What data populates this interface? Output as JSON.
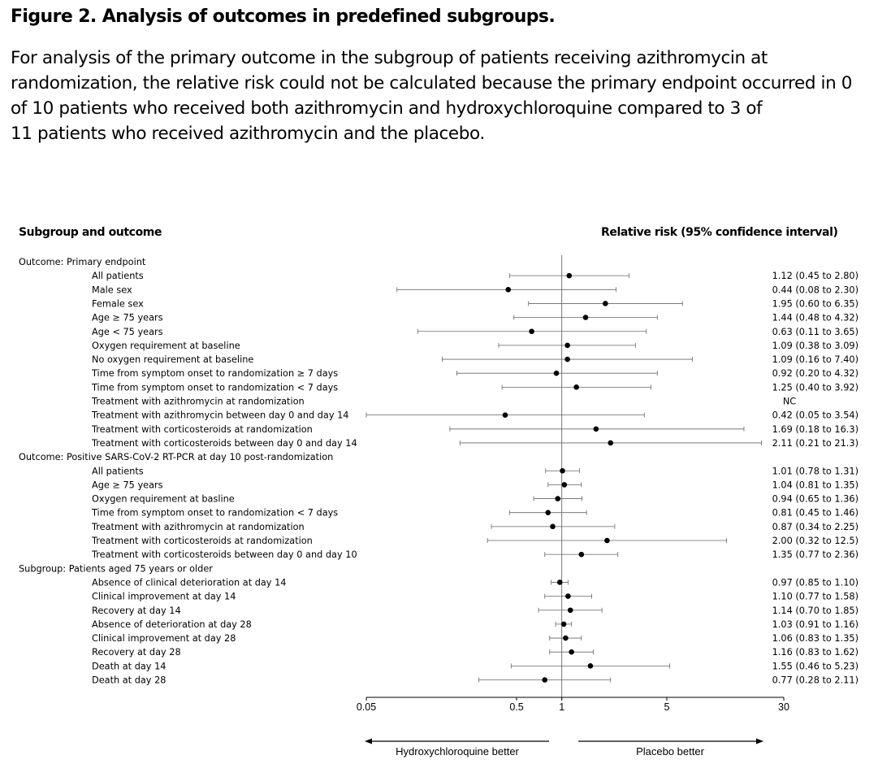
{
  "figure": {
    "title": "Figure 2. Analysis of outcomes in predefined subgroups.",
    "caption_lines": [
      "For analysis of the primary outcome in the subgroup of patients receiving azithromycin at",
      "randomization, the relative risk could not be calculated because the primary endpoint occurred in 0",
      "of 10 patients who received both azithromycin and hydroxychloroquine compared to 3 of",
      "11 patients who received azithromycin and the placebo."
    ]
  },
  "chart_data": {
    "type": "forest",
    "scale": "log",
    "column_headers": {
      "subgroup": "Subgroup and outcome",
      "estimate": "Relative risk (95% confidence interval)"
    },
    "xlim": [
      0.05,
      30
    ],
    "reference_value": 1,
    "x_ticks": [
      {
        "value": 0.05,
        "label": "0.05"
      },
      {
        "value": 0.5,
        "label": "0.5"
      },
      {
        "value": 1,
        "label": "1"
      },
      {
        "value": 5,
        "label": "5"
      },
      {
        "value": 30,
        "label": "30"
      }
    ],
    "direction_labels": {
      "left": "Hydroxychloroquine better",
      "right": "Placebo better"
    },
    "rows": [
      {
        "label": "Outcome: Primary endpoint",
        "header": true
      },
      {
        "label": "All patients",
        "rr": 1.12,
        "lo": 0.45,
        "hi": 2.8,
        "text": "1.12 (0.45 to 2.80)"
      },
      {
        "label": "Male sex",
        "rr": 0.44,
        "lo": 0.08,
        "hi": 2.3,
        "text": "0.44 (0.08 to 2.30)"
      },
      {
        "label": "Female sex",
        "rr": 1.95,
        "lo": 0.6,
        "hi": 6.35,
        "text": "1.95 (0.60 to 6.35)"
      },
      {
        "label": "Age ≥ 75 years",
        "rr": 1.44,
        "lo": 0.48,
        "hi": 4.32,
        "text": "1.44 (0.48 to 4.32)"
      },
      {
        "label": "Age < 75 years",
        "rr": 0.63,
        "lo": 0.11,
        "hi": 3.65,
        "text": "0.63 (0.11 to 3.65)"
      },
      {
        "label": "Oxygen requirement at baseline",
        "rr": 1.09,
        "lo": 0.38,
        "hi": 3.09,
        "text": "1.09 (0.38 to 3.09)"
      },
      {
        "label": "No oxygen requirement at baseline",
        "rr": 1.09,
        "lo": 0.16,
        "hi": 7.4,
        "text": "1.09 (0.16 to 7.40)"
      },
      {
        "label": "Time from symptom onset to randomization ≥ 7 days",
        "rr": 0.92,
        "lo": 0.2,
        "hi": 4.32,
        "text": "0.92 (0.20 to 4.32)"
      },
      {
        "label": "Time from symptom onset to randomization < 7 days",
        "rr": 1.25,
        "lo": 0.4,
        "hi": 3.92,
        "text": "1.25 (0.40 to 3.92)"
      },
      {
        "label": "Treatment with azithromycin at randomization",
        "rr": null,
        "lo": null,
        "hi": null,
        "text": "NC"
      },
      {
        "label": "Treatment with azithromycin between day 0 and day 14",
        "rr": 0.42,
        "lo": 0.05,
        "hi": 3.54,
        "text": "0.42 (0.05 to 3.54)"
      },
      {
        "label": "Treatment with corticosteroids at randomization",
        "rr": 1.69,
        "lo": 0.18,
        "hi": 16.3,
        "text": "1.69 (0.18 to 16.3)"
      },
      {
        "label": "Treatment with corticosteroids between day 0 and day 14",
        "rr": 2.11,
        "lo": 0.21,
        "hi": 21.3,
        "text": "2.11 (0.21 to 21.3)"
      },
      {
        "label": "Outcome: Positive SARS-CoV-2 RT-PCR at day 10 post-randomization",
        "header": true
      },
      {
        "label": "All patients",
        "rr": 1.01,
        "lo": 0.78,
        "hi": 1.31,
        "text": "1.01 (0.78 to 1.31)"
      },
      {
        "label": "Age ≥ 75 years",
        "rr": 1.04,
        "lo": 0.81,
        "hi": 1.35,
        "text": "1.04 (0.81 to 1.35)"
      },
      {
        "label": "Oxygen requirement at basline",
        "rr": 0.94,
        "lo": 0.65,
        "hi": 1.36,
        "text": "0.94 (0.65 to 1.36)"
      },
      {
        "label": "Time from symptom onset to randomization < 7 days",
        "rr": 0.81,
        "lo": 0.45,
        "hi": 1.46,
        "text": "0.81 (0.45 to 1.46)"
      },
      {
        "label": "Treatment with azithromycin at randomization",
        "rr": 0.87,
        "lo": 0.34,
        "hi": 2.25,
        "text": "0.87 (0.34 to 2.25)"
      },
      {
        "label": "Treatment with corticosteroids at randomization",
        "rr": 2.0,
        "lo": 0.32,
        "hi": 12.5,
        "text": "2.00 (0.32 to 12.5)"
      },
      {
        "label": "Treatment with corticosteroids between day 0 and day 10",
        "rr": 1.35,
        "lo": 0.77,
        "hi": 2.36,
        "text": "1.35 (0.77 to 2.36)"
      },
      {
        "label": "Subgroup: Patients aged 75 years or older",
        "header": true
      },
      {
        "label": "Absence of clinical deterioration at day 14",
        "rr": 0.97,
        "lo": 0.85,
        "hi": 1.1,
        "text": "0.97 (0.85 to 1.10)"
      },
      {
        "label": "Clinical improvement at day 14",
        "rr": 1.1,
        "lo": 0.77,
        "hi": 1.58,
        "text": "1.10 (0.77 to 1.58)"
      },
      {
        "label": "Recovery at day 14",
        "rr": 1.14,
        "lo": 0.7,
        "hi": 1.85,
        "text": "1.14 (0.70 to 1.85)"
      },
      {
        "label": "Absence of deterioration at day 28",
        "rr": 1.03,
        "lo": 0.91,
        "hi": 1.16,
        "text": "1.03 (0.91 to 1.16)"
      },
      {
        "label": "Clinical improvement at day 28",
        "rr": 1.06,
        "lo": 0.83,
        "hi": 1.35,
        "text": "1.06 (0.83 to 1.35)"
      },
      {
        "label": "Recovery at day 28",
        "rr": 1.16,
        "lo": 0.83,
        "hi": 1.62,
        "text": "1.16 (0.83 to 1.62)"
      },
      {
        "label": "Death at day 14",
        "rr": 1.55,
        "lo": 0.46,
        "hi": 5.23,
        "text": "1.55 (0.46 to 5.23)"
      },
      {
        "label": "Death at day 28",
        "rr": 0.77,
        "lo": 0.28,
        "hi": 2.11,
        "text": "0.77 (0.28 to 2.11)"
      }
    ]
  }
}
